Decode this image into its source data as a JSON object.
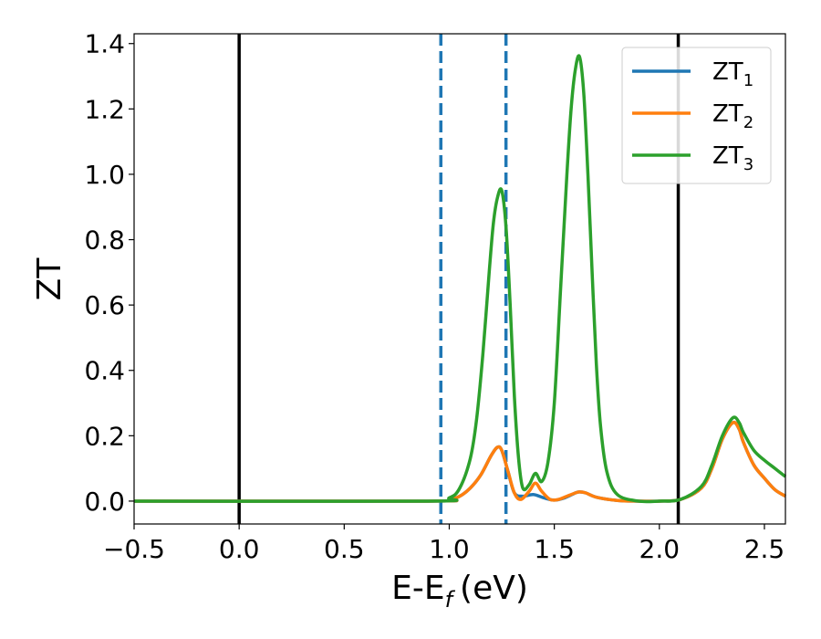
{
  "chart_data": {
    "type": "line",
    "xlabel": "E-E",
    "xlabel_sub": "f",
    "xlabel_unit": "(eV)",
    "ylabel": "ZT",
    "xlim": [
      -0.5,
      2.6
    ],
    "ylim": [
      -0.07,
      1.43
    ],
    "x_ticks": [
      -0.5,
      0.0,
      0.5,
      1.0,
      1.5,
      2.0,
      2.5
    ],
    "x_tick_labels": [
      "−0.5",
      "0.0",
      "0.5",
      "1.0",
      "1.5",
      "2.0",
      "2.5"
    ],
    "y_ticks": [
      0.0,
      0.2,
      0.4,
      0.6,
      0.8,
      1.0,
      1.2,
      1.4
    ],
    "y_tick_labels": [
      "0.0",
      "0.2",
      "0.4",
      "0.6",
      "0.8",
      "1.0",
      "1.2",
      "1.4"
    ],
    "grid": false,
    "legend_position": "top-right",
    "vertical_lines": [
      {
        "x": 0.0,
        "style": "solid",
        "color": "#000000"
      },
      {
        "x": 2.09,
        "style": "solid",
        "color": "#000000"
      },
      {
        "x": 0.96,
        "style": "dashed",
        "color": "#1f77b4"
      },
      {
        "x": 1.27,
        "style": "dashed",
        "color": "#1f77b4"
      }
    ],
    "series": [
      {
        "name": "ZT",
        "name_sub": "1",
        "color": "#1f77b4",
        "x": [
          -0.5,
          0.9,
          1.0,
          1.05,
          1.1,
          1.15,
          1.2,
          1.23,
          1.25,
          1.28,
          1.31,
          1.35,
          1.4,
          1.45,
          1.5,
          1.55,
          1.6,
          1.62,
          1.65,
          1.7,
          1.8,
          1.9,
          2.0,
          2.1,
          2.2,
          2.25,
          2.3,
          2.35,
          2.38,
          2.4,
          2.45,
          2.5,
          2.55,
          2.6
        ],
        "y": [
          0.0,
          0.0,
          0.005,
          0.015,
          0.04,
          0.08,
          0.14,
          0.165,
          0.155,
          0.09,
          0.025,
          0.015,
          0.02,
          0.01,
          0.003,
          0.01,
          0.025,
          0.028,
          0.025,
          0.012,
          0.002,
          0.0,
          0.0,
          0.005,
          0.04,
          0.1,
          0.19,
          0.24,
          0.22,
          0.18,
          0.11,
          0.07,
          0.035,
          0.015
        ]
      },
      {
        "name": "ZT",
        "name_sub": "2",
        "color": "#ff7f0e",
        "x": [
          -0.5,
          0.9,
          1.0,
          1.05,
          1.1,
          1.15,
          1.2,
          1.23,
          1.25,
          1.28,
          1.31,
          1.34,
          1.38,
          1.41,
          1.44,
          1.48,
          1.52,
          1.56,
          1.6,
          1.62,
          1.65,
          1.7,
          1.8,
          1.9,
          2.0,
          2.1,
          2.2,
          2.25,
          2.3,
          2.35,
          2.38,
          2.4,
          2.45,
          2.5,
          2.55,
          2.6
        ],
        "y": [
          0.0,
          0.0,
          0.005,
          0.015,
          0.04,
          0.08,
          0.14,
          0.165,
          0.155,
          0.09,
          0.025,
          0.005,
          0.03,
          0.055,
          0.03,
          0.005,
          0.005,
          0.015,
          0.025,
          0.028,
          0.025,
          0.012,
          0.002,
          0.0,
          0.0,
          0.005,
          0.04,
          0.1,
          0.19,
          0.24,
          0.22,
          0.18,
          0.11,
          0.07,
          0.035,
          0.015
        ]
      },
      {
        "name": "ZT",
        "name_sub": "3",
        "color": "#2ca02c",
        "x": [
          -0.5,
          0.9,
          1.0,
          1.05,
          1.1,
          1.13,
          1.16,
          1.19,
          1.21,
          1.23,
          1.25,
          1.27,
          1.29,
          1.31,
          1.33,
          1.35,
          1.38,
          1.41,
          1.44,
          1.47,
          1.5,
          1.53,
          1.56,
          1.58,
          1.6,
          1.62,
          1.64,
          1.66,
          1.68,
          1.7,
          1.72,
          1.75,
          1.8,
          1.9,
          2.0,
          2.1,
          2.2,
          2.25,
          2.3,
          2.35,
          2.38,
          2.4,
          2.45,
          2.5,
          2.55,
          2.6
        ],
        "y": [
          0.0,
          0.0,
          0.01,
          0.04,
          0.13,
          0.25,
          0.45,
          0.7,
          0.85,
          0.93,
          0.95,
          0.84,
          0.6,
          0.32,
          0.13,
          0.04,
          0.05,
          0.085,
          0.06,
          0.12,
          0.3,
          0.65,
          1.0,
          1.2,
          1.32,
          1.36,
          1.25,
          1.0,
          0.7,
          0.42,
          0.23,
          0.09,
          0.02,
          0.0,
          0.0,
          0.005,
          0.045,
          0.11,
          0.2,
          0.255,
          0.24,
          0.21,
          0.155,
          0.125,
          0.1,
          0.075
        ]
      }
    ]
  }
}
